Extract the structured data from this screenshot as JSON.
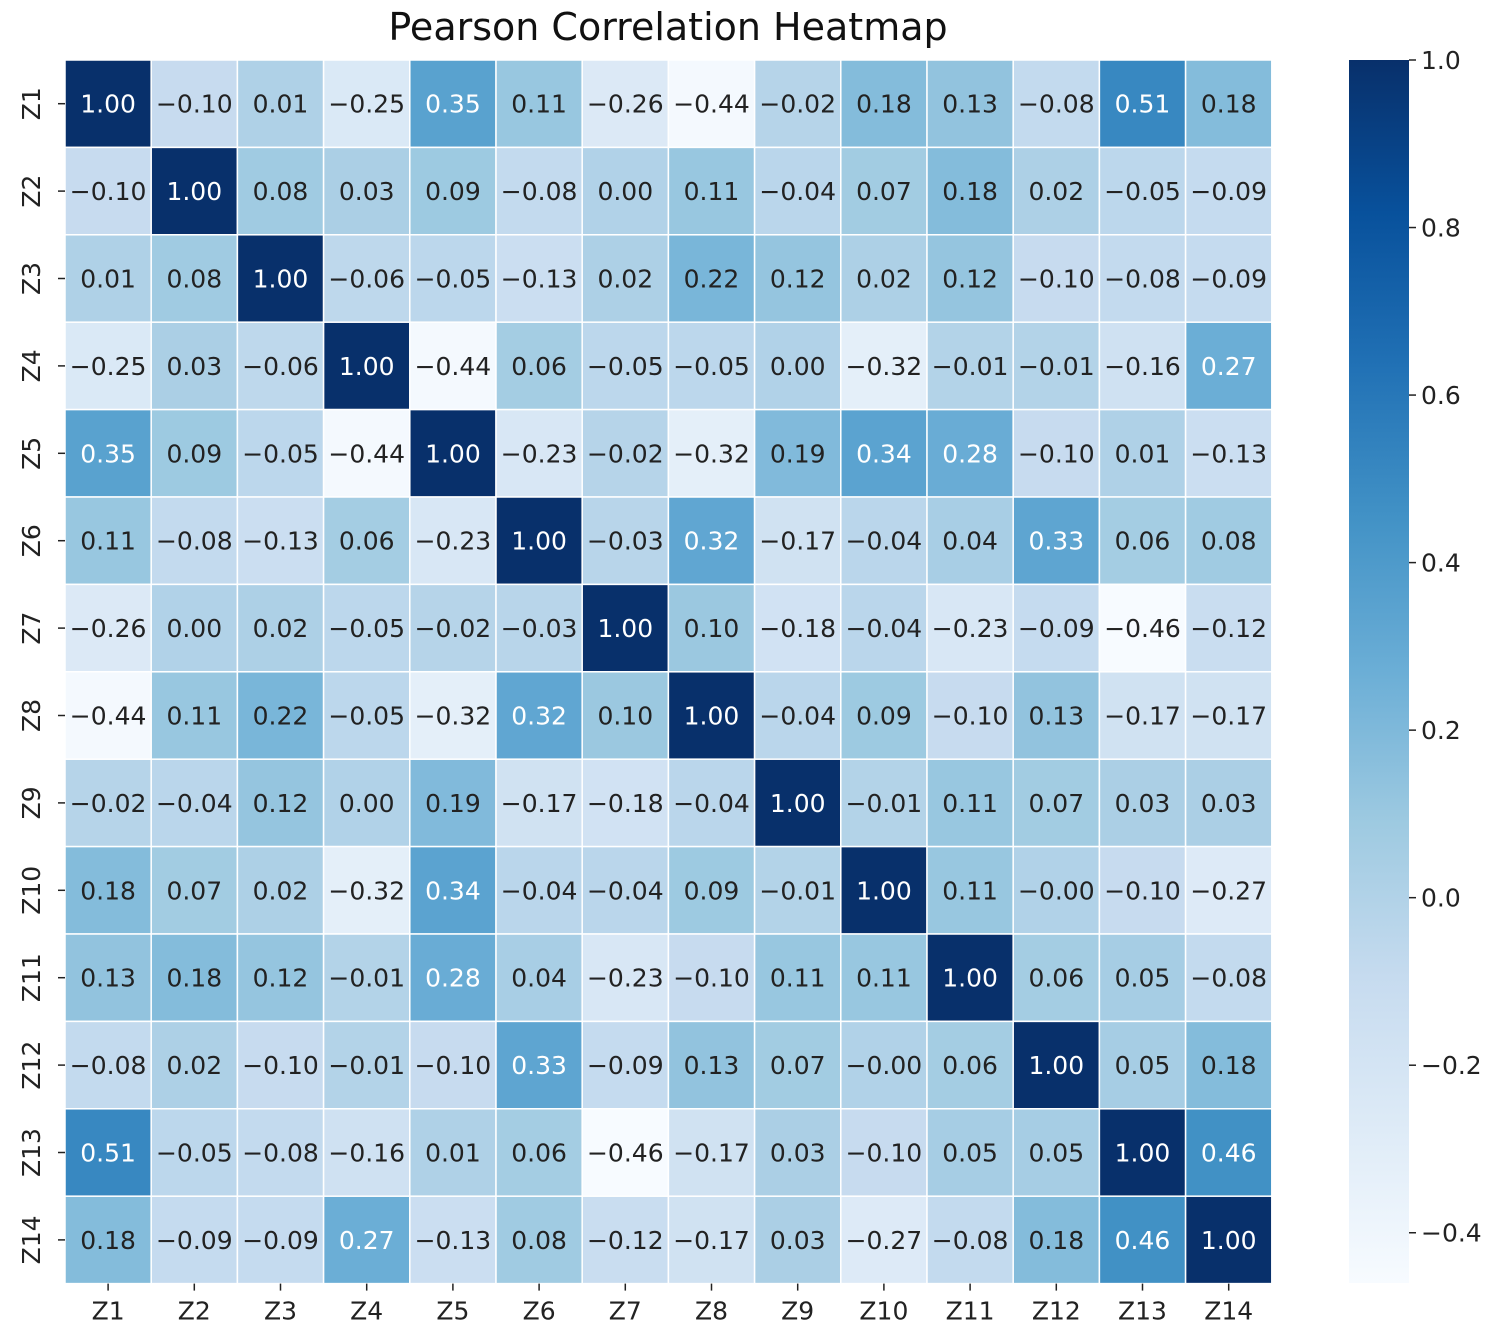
{
  "chart_data": {
    "type": "heatmap",
    "title": "Pearson Correlation Heatmap",
    "xlabel": "",
    "ylabel": "",
    "colormap": "Blues",
    "colors": {
      "low": "#f7fbff",
      "high": "#08306b",
      "grid_line": "#ffffff",
      "text_dark": "#222222",
      "text_light": "#ffffff"
    },
    "x_categories": [
      "Z1",
      "Z2",
      "Z3",
      "Z4",
      "Z5",
      "Z6",
      "Z7",
      "Z8",
      "Z9",
      "Z10",
      "Z11",
      "Z12",
      "Z13",
      "Z14"
    ],
    "y_categories": [
      "Z1",
      "Z2",
      "Z3",
      "Z4",
      "Z5",
      "Z6",
      "Z7",
      "Z8",
      "Z9",
      "Z10",
      "Z11",
      "Z12",
      "Z13",
      "Z14"
    ],
    "values": [
      [
        "1.00",
        "−0.10",
        "0.01",
        "−0.25",
        "0.35",
        "0.11",
        "−0.26",
        "−0.44",
        "−0.02",
        "0.18",
        "0.13",
        "−0.08",
        "0.51",
        "0.18"
      ],
      [
        "−0.10",
        "1.00",
        "0.08",
        "0.03",
        "0.09",
        "−0.08",
        "0.00",
        "0.11",
        "−0.04",
        "0.07",
        "0.18",
        "0.02",
        "−0.05",
        "−0.09"
      ],
      [
        "0.01",
        "0.08",
        "1.00",
        "−0.06",
        "−0.05",
        "−0.13",
        "0.02",
        "0.22",
        "0.12",
        "0.02",
        "0.12",
        "−0.10",
        "−0.08",
        "−0.09"
      ],
      [
        "−0.25",
        "0.03",
        "−0.06",
        "1.00",
        "−0.44",
        "0.06",
        "−0.05",
        "−0.05",
        "0.00",
        "−0.32",
        "−0.01",
        "−0.01",
        "−0.16",
        "0.27"
      ],
      [
        "0.35",
        "0.09",
        "−0.05",
        "−0.44",
        "1.00",
        "−0.23",
        "−0.02",
        "−0.32",
        "0.19",
        "0.34",
        "0.28",
        "−0.10",
        "0.01",
        "−0.13"
      ],
      [
        "0.11",
        "−0.08",
        "−0.13",
        "0.06",
        "−0.23",
        "1.00",
        "−0.03",
        "0.32",
        "−0.17",
        "−0.04",
        "0.04",
        "0.33",
        "0.06",
        "0.08"
      ],
      [
        "−0.26",
        "0.00",
        "0.02",
        "−0.05",
        "−0.02",
        "−0.03",
        "1.00",
        "0.10",
        "−0.18",
        "−0.04",
        "−0.23",
        "−0.09",
        "−0.46",
        "−0.12"
      ],
      [
        "−0.44",
        "0.11",
        "0.22",
        "−0.05",
        "−0.32",
        "0.32",
        "0.10",
        "1.00",
        "−0.04",
        "0.09",
        "−0.10",
        "0.13",
        "−0.17",
        "−0.17"
      ],
      [
        "−0.02",
        "−0.04",
        "0.12",
        "0.00",
        "0.19",
        "−0.17",
        "−0.18",
        "−0.04",
        "1.00",
        "−0.01",
        "0.11",
        "0.07",
        "0.03",
        "0.03"
      ],
      [
        "0.18",
        "0.07",
        "0.02",
        "−0.32",
        "0.34",
        "−0.04",
        "−0.04",
        "0.09",
        "−0.01",
        "1.00",
        "0.11",
        "−0.00",
        "−0.10",
        "−0.27"
      ],
      [
        "0.13",
        "0.18",
        "0.12",
        "−0.01",
        "0.28",
        "0.04",
        "−0.23",
        "−0.10",
        "0.11",
        "0.11",
        "1.00",
        "0.06",
        "0.05",
        "−0.08"
      ],
      [
        "−0.08",
        "0.02",
        "−0.10",
        "−0.01",
        "−0.10",
        "0.33",
        "−0.09",
        "0.13",
        "0.07",
        "−0.00",
        "0.06",
        "1.00",
        "0.05",
        "0.18"
      ],
      [
        "0.51",
        "−0.05",
        "−0.08",
        "−0.16",
        "0.01",
        "0.06",
        "−0.46",
        "−0.17",
        "0.03",
        "−0.10",
        "0.05",
        "0.05",
        "1.00",
        "0.46"
      ],
      [
        "0.18",
        "−0.09",
        "−0.09",
        "0.27",
        "−0.13",
        "0.08",
        "−0.12",
        "−0.17",
        "0.03",
        "−0.27",
        "−0.08",
        "0.18",
        "0.46",
        "1.00"
      ]
    ],
    "colorbar": {
      "range": [
        -0.46,
        1.0
      ],
      "ticks": [
        1.0,
        0.8,
        0.6,
        0.4,
        0.2,
        0.0,
        -0.2,
        -0.4
      ],
      "tick_labels": [
        "1.0",
        "0.8",
        "0.6",
        "0.4",
        "0.2",
        "0.0",
        "−0.2",
        "−0.4"
      ]
    }
  }
}
